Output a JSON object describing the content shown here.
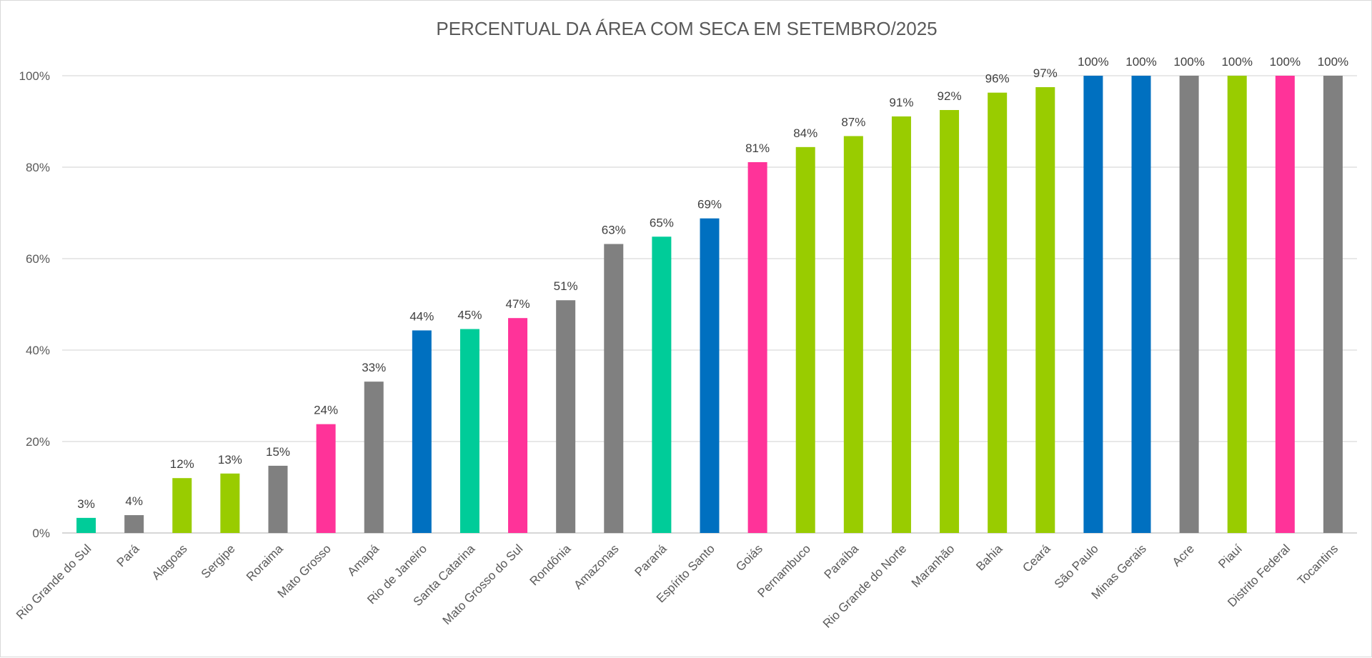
{
  "chart_data": {
    "type": "bar",
    "title": "PERCENTUAL DA ÁREA COM SECA EM SETEMBRO/2025",
    "xlabel": "",
    "ylabel": "",
    "ylim": [
      0,
      100
    ],
    "yticks": [
      "0%",
      "20%",
      "40%",
      "60%",
      "80%",
      "100%"
    ],
    "ytick_values": [
      0,
      20,
      40,
      60,
      80,
      100
    ],
    "grid": true,
    "legend": "none",
    "categories": [
      "Rio Grande do Sul",
      "Pará",
      "Alagoas",
      "Sergipe",
      "Roraima",
      "Mato Grosso",
      "Amapá",
      "Rio de Janeiro",
      "Santa Catarina",
      "Mato Grosso do Sul",
      "Rondônia",
      "Amazonas",
      "Paraná",
      "Espírito Santo",
      "Goiás",
      "Pernambuco",
      "Paraíba",
      "Rio Grande do Norte",
      "Maranhão",
      "Bahia",
      "Ceará",
      "São Paulo",
      "Minas Gerais",
      "Acre",
      "Piauí",
      "Distrito Federal",
      "Tocantins"
    ],
    "values": [
      3.3,
      3.9,
      12,
      13,
      14.7,
      23.8,
      33.1,
      44.3,
      44.6,
      47,
      50.9,
      63.2,
      64.8,
      68.8,
      81.1,
      84.4,
      86.8,
      91.1,
      92.5,
      96.3,
      97.5,
      100,
      100,
      100,
      100,
      100,
      100
    ],
    "data_labels": [
      "3%",
      "4%",
      "12%",
      "13%",
      "15%",
      "24%",
      "33%",
      "44%",
      "45%",
      "47%",
      "51%",
      "63%",
      "65%",
      "69%",
      "81%",
      "84%",
      "87%",
      "91%",
      "92%",
      "96%",
      "97%",
      "100%",
      "100%",
      "100%",
      "100%",
      "100%",
      "100%"
    ],
    "bar_colors": [
      "#00cc99",
      "#808080",
      "#99cc00",
      "#99cc00",
      "#808080",
      "#ff3399",
      "#808080",
      "#0070c0",
      "#00cc99",
      "#ff3399",
      "#808080",
      "#808080",
      "#00cc99",
      "#0070c0",
      "#ff3399",
      "#99cc00",
      "#99cc00",
      "#99cc00",
      "#99cc00",
      "#99cc00",
      "#99cc00",
      "#0070c0",
      "#0070c0",
      "#808080",
      "#99cc00",
      "#ff3399",
      "#808080"
    ],
    "colors": {
      "grid": "#d9d9d9",
      "axis": "#bfbfbf",
      "text": "#595959"
    }
  }
}
